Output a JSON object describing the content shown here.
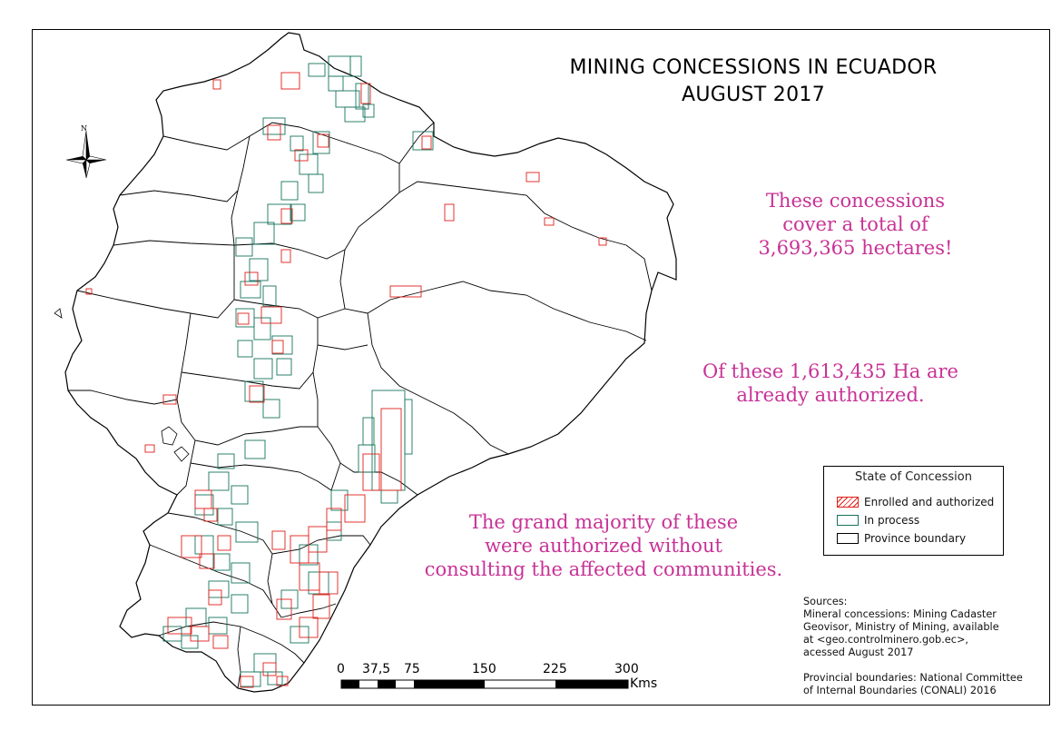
{
  "title": {
    "line1": "MINING CONCESSIONS IN ECUADOR",
    "line2": "AUGUST 2017"
  },
  "annotations": {
    "total": [
      "These concessions",
      "cover a total of",
      "3,693,365 hectares!"
    ],
    "authorized": [
      "Of these 1,613,435 Ha are",
      "already authorized."
    ],
    "consultation": [
      "The grand majority of these",
      "were authorized without",
      "consulting the affected communities."
    ]
  },
  "legend": {
    "title": "State of Concession",
    "items": [
      {
        "label": "Enrolled and authorized",
        "color": "#e0201a"
      },
      {
        "label": "In process",
        "color": "#16735e"
      },
      {
        "label": "Province boundary",
        "color": "#000000"
      }
    ]
  },
  "scale_bar": {
    "ticks": [
      "0",
      "37,5",
      "75",
      "150",
      "225",
      "300"
    ],
    "unit": "Kms"
  },
  "compass": {
    "label": "N"
  },
  "sources": {
    "lines": [
      "Sources:",
      "Mineral concessions: Mining Cadaster",
      "Geovisor, Ministry of Mining, available",
      "at <geo.controlminero.gob.ec>,",
      "acessed August 2017",
      "",
      "Provincial boundaries: National Committee",
      "of Internal Boundaries (CONALI) 2016"
    ]
  },
  "colors": {
    "authorized": "#e0201a",
    "in_process": "#16735e",
    "boundary": "#000000",
    "annotation_text": "#c83296"
  }
}
